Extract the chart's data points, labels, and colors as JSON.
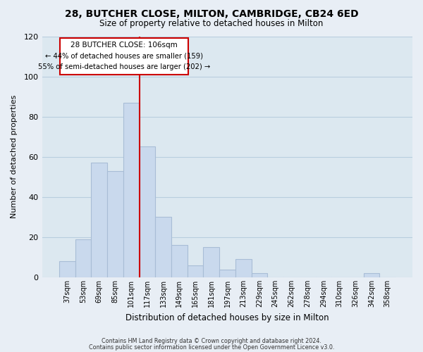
{
  "title": "28, BUTCHER CLOSE, MILTON, CAMBRIDGE, CB24 6ED",
  "subtitle": "Size of property relative to detached houses in Milton",
  "xlabel": "Distribution of detached houses by size in Milton",
  "ylabel": "Number of detached properties",
  "bar_labels": [
    "37sqm",
    "53sqm",
    "69sqm",
    "85sqm",
    "101sqm",
    "117sqm",
    "133sqm",
    "149sqm",
    "165sqm",
    "181sqm",
    "197sqm",
    "213sqm",
    "229sqm",
    "245sqm",
    "262sqm",
    "278sqm",
    "294sqm",
    "310sqm",
    "326sqm",
    "342sqm",
    "358sqm"
  ],
  "bar_values": [
    8,
    19,
    57,
    53,
    87,
    65,
    30,
    16,
    6,
    15,
    4,
    9,
    2,
    0,
    0,
    0,
    0,
    0,
    0,
    2,
    0
  ],
  "bar_color": "#c9d9ed",
  "bar_edge_color": "#a8bdd6",
  "ylim": [
    0,
    120
  ],
  "yticks": [
    0,
    20,
    40,
    60,
    80,
    100,
    120
  ],
  "vline_color": "#cc0000",
  "annotation_title": "28 BUTCHER CLOSE: 106sqm",
  "annotation_line1": "← 44% of detached houses are smaller (159)",
  "annotation_line2": "55% of semi-detached houses are larger (202) →",
  "annotation_box_color": "#ffffff",
  "annotation_box_edge": "#cc0000",
  "footer1": "Contains HM Land Registry data © Crown copyright and database right 2024.",
  "footer2": "Contains public sector information licensed under the Open Government Licence v3.0.",
  "background_color": "#e8eef5",
  "plot_background": "#dce8f0",
  "grid_color": "#b8cede"
}
